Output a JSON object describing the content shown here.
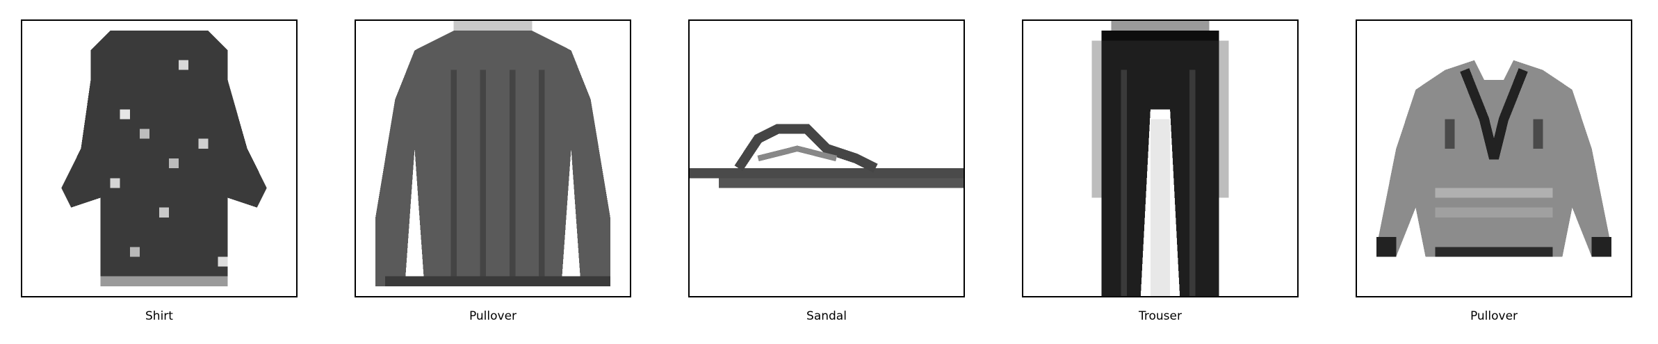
{
  "panels": [
    {
      "label": "Shirt",
      "icon": "shirt-icon"
    },
    {
      "label": "Pullover",
      "icon": "pullover-icon"
    },
    {
      "label": "Sandal",
      "icon": "sandal-icon"
    },
    {
      "label": "Trouser",
      "icon": "trouser-icon"
    },
    {
      "label": "Pullover",
      "icon": "pullover-icon"
    }
  ]
}
